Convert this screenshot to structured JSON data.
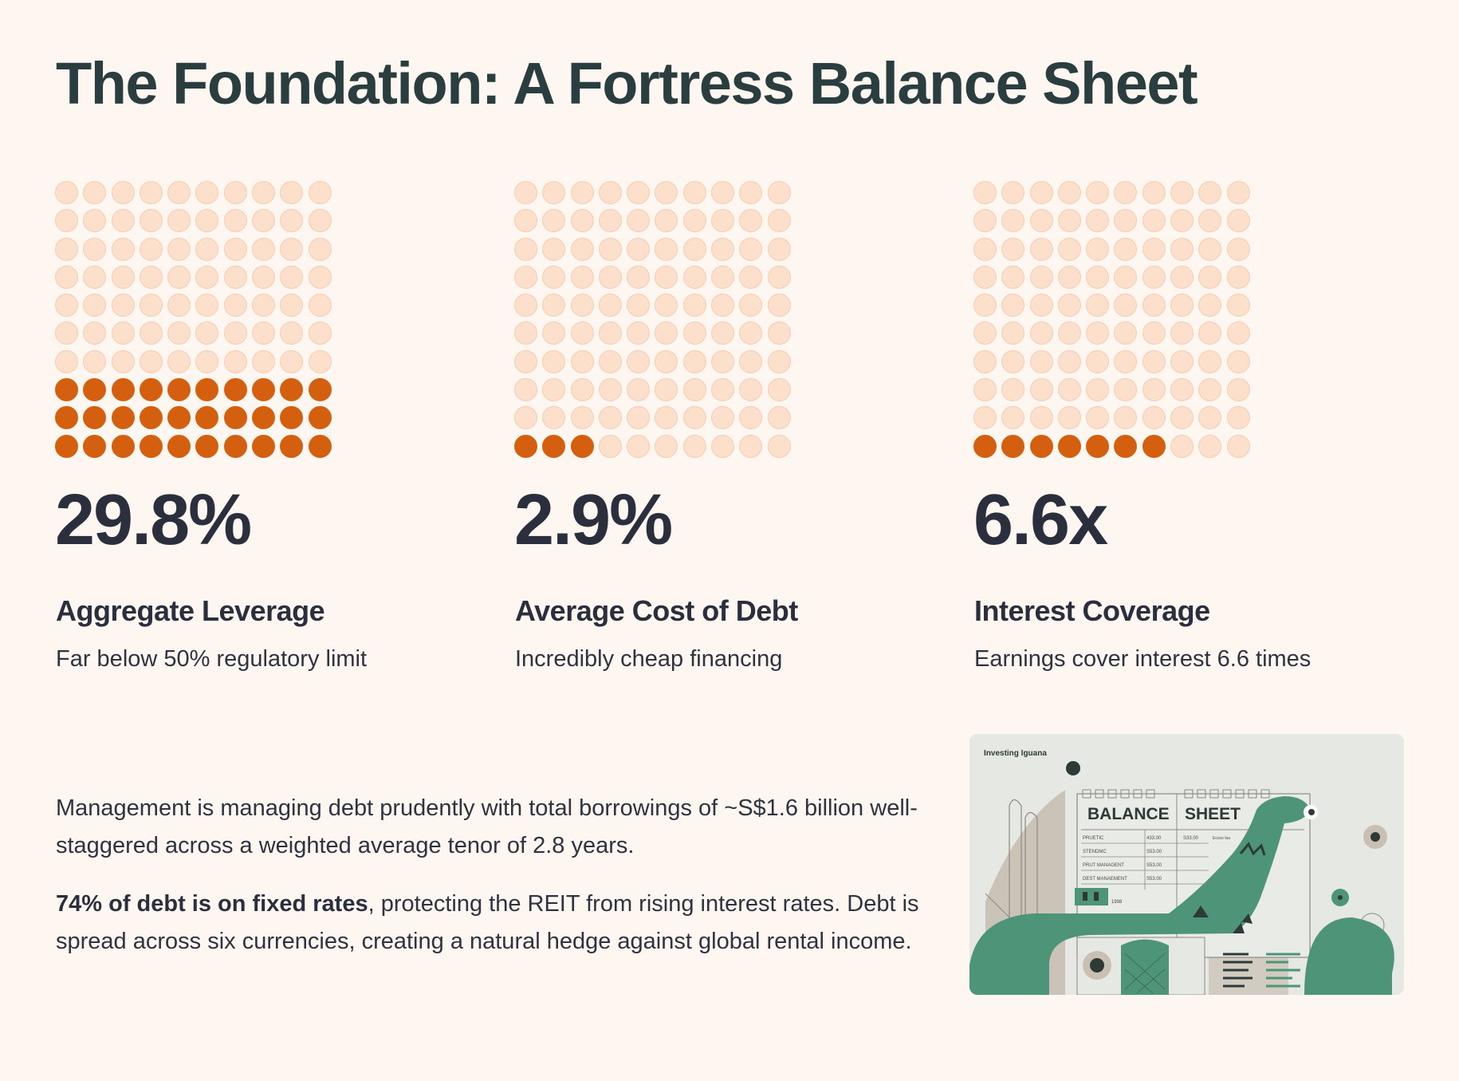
{
  "title": "The Foundation: A Fortress Balance Sheet",
  "stats": [
    {
      "value": "29.8%",
      "label": "Aggregate Leverage",
      "description": "Far below 50% regulatory limit",
      "filled_dots": 30,
      "total_dots": 100
    },
    {
      "value": "2.9%",
      "label": "Average Cost of Debt",
      "description": "Incredibly cheap financing",
      "filled_dots": 3,
      "total_dots": 100
    },
    {
      "value": "6.6x",
      "label": "Interest Coverage",
      "description": "Earnings cover interest 6.6 times",
      "filled_dots": 7,
      "total_dots": 100
    }
  ],
  "paragraphs": {
    "p1": "Management is managing debt prudently with total borrowings of ~S$1.6 billion well-staggered across a weighted average tenor of 2.8 years.",
    "p2_bold": "74% of debt is on fixed rates",
    "p2_rest": ", protecting the REIT from rising interest rates. Debt is spread across six currencies, creating a natural hedge against global rental income."
  },
  "illustration": {
    "brand": "Investing Iguana",
    "heading_left": "BALANCE",
    "heading_right": "SHEET",
    "rows": [
      {
        "label": "PRUETIC",
        "value": "433.00"
      },
      {
        "label": "STENDMC",
        "value": "S53.00"
      },
      {
        "label": "PRUT MANAGENT",
        "value": "S53.00"
      },
      {
        "label": "DEST MANAEMENT",
        "value": "S53.00"
      }
    ],
    "extra_value": "S33.00",
    "extra_note": "Ecoce Isa",
    "year": "1998"
  },
  "colors": {
    "background": "#fef7f1",
    "dot_filled": "#d4600f",
    "dot_empty": "#fde0cb",
    "title": "#2a3d3f",
    "iguana_green": "#4e9478"
  }
}
